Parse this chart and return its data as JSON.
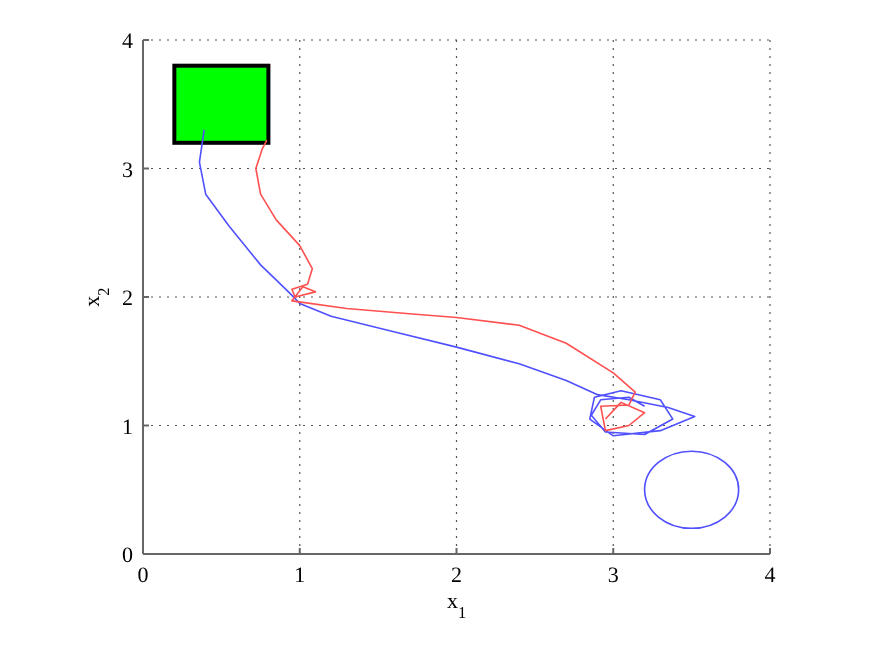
{
  "chart_data": {
    "type": "line",
    "xlabel": "x$_{1}$",
    "ylabel": "x$_{2}$",
    "xlim": [
      0,
      4
    ],
    "ylim": [
      0,
      4
    ],
    "xticks": [
      0,
      1,
      2,
      3,
      4
    ],
    "yticks": [
      0,
      1,
      2,
      3,
      4
    ],
    "grid": true,
    "marker": "none",
    "line_style": "solid",
    "series": [
      {
        "color": "#5050ff",
        "x": [
          0.39,
          0.36,
          0.4,
          0.55,
          0.75,
          0.92,
          1.0,
          1.2,
          1.6,
          2.0,
          2.4,
          2.7,
          2.9,
          3.1,
          3.35,
          3.52,
          3.3,
          3.0,
          2.85,
          2.88,
          3.05,
          3.3,
          3.38,
          3.2,
          2.95,
          2.86,
          2.92,
          3.1,
          3.2
        ],
        "values": [
          3.3,
          3.05,
          2.8,
          2.55,
          2.25,
          2.05,
          1.95,
          1.85,
          1.73,
          1.61,
          1.48,
          1.35,
          1.24,
          1.2,
          1.14,
          1.07,
          0.96,
          0.92,
          1.05,
          1.22,
          1.27,
          1.2,
          1.05,
          0.93,
          0.95,
          1.08,
          1.2,
          1.22,
          1.15
        ]
      },
      {
        "color": "#ff5050",
        "x": [
          0.79,
          0.76,
          0.72,
          0.75,
          0.85,
          1.0,
          1.08,
          1.05,
          0.95,
          0.97,
          1.1,
          1.02,
          0.95,
          1.3,
          1.7,
          2.0,
          2.4,
          2.7,
          3.0,
          3.14,
          3.1,
          2.92,
          2.95,
          3.1,
          3.2,
          3.05,
          2.95
        ],
        "values": [
          3.22,
          3.15,
          3.0,
          2.8,
          2.6,
          2.4,
          2.22,
          2.1,
          2.06,
          2.0,
          2.04,
          2.08,
          1.97,
          1.91,
          1.87,
          1.84,
          1.78,
          1.64,
          1.41,
          1.26,
          1.16,
          1.15,
          0.96,
          1.0,
          1.1,
          1.18,
          1.05
        ]
      }
    ]
  }
}
